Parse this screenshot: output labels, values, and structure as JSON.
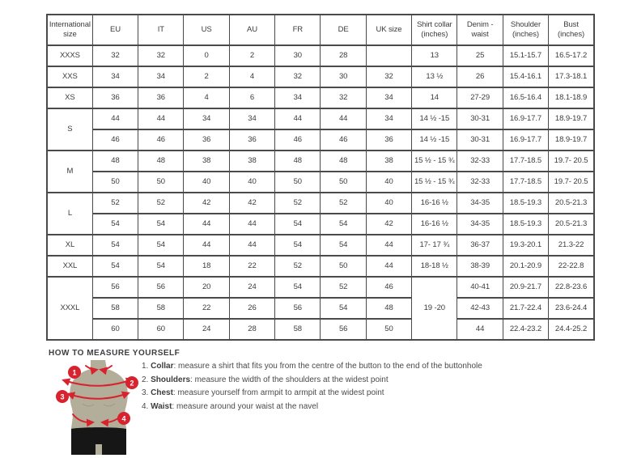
{
  "colors": {
    "accent_red": "#d8232f",
    "body_color": "#b3ae9a",
    "shorts_color": "#161616",
    "border_color": "#4a4a4a",
    "text_color": "#3c3c3c"
  },
  "table": {
    "headers": [
      "International size",
      "EU",
      "IT",
      "US",
      "AU",
      "FR",
      "DE",
      "UK size",
      "Shirt collar (inches)",
      "Denim - waist",
      "Shoulder (inches)",
      "Bust (inches)"
    ],
    "rows": [
      [
        "XXXS",
        "32",
        "32",
        "0",
        "2",
        "30",
        "28",
        "",
        "13",
        "25",
        "15.1-15.7",
        "16.5-17.2"
      ],
      [
        "XXS",
        "34",
        "34",
        "2",
        "4",
        "32",
        "30",
        "32",
        "13 ½",
        "26",
        "15.4-16.1",
        "17.3-18.1"
      ],
      [
        "XS",
        "36",
        "36",
        "4",
        "6",
        "34",
        "32",
        "34",
        "14",
        "27-29",
        "16.5-16.4",
        "18.1-18.9"
      ],
      [
        {
          "text": "S",
          "rowspan": 2
        },
        "44",
        "44",
        "34",
        "34",
        "44",
        "44",
        "34",
        "14 ½ -15",
        "30-31",
        "16.9-17.7",
        "18.9-19.7"
      ],
      [
        "46",
        "46",
        "36",
        "36",
        "46",
        "46",
        "36",
        "14 ½ -15",
        "30-31",
        "16.9-17.7",
        "18.9-19.7"
      ],
      [
        {
          "text": "M",
          "rowspan": 2
        },
        "48",
        "48",
        "38",
        "38",
        "48",
        "48",
        "38",
        "15 ½ - 15 ¾",
        "32-33",
        "17.7-18.5",
        "19.7- 20.5"
      ],
      [
        "50",
        "50",
        "40",
        "40",
        "50",
        "50",
        "40",
        "15 ½ - 15 ¾",
        "32-33",
        "17.7-18.5",
        "19.7- 20.5"
      ],
      [
        {
          "text": "L",
          "rowspan": 2
        },
        "52",
        "52",
        "42",
        "42",
        "52",
        "52",
        "40",
        "16-16 ½",
        "34-35",
        "18.5-19.3",
        "20.5-21.3"
      ],
      [
        "54",
        "54",
        "44",
        "44",
        "54",
        "54",
        "42",
        "16-16 ½",
        "34-35",
        "18.5-19.3",
        "20.5-21.3"
      ],
      [
        "XL",
        "54",
        "54",
        "44",
        "44",
        "54",
        "54",
        "44",
        "17- 17 ¾",
        "36-37",
        "19.3-20.1",
        "21.3-22"
      ],
      [
        "XXL",
        "54",
        "54",
        "18",
        "22",
        "52",
        "50",
        "44",
        "18-18 ½",
        "38-39",
        "20.1-20.9",
        "22-22.8"
      ],
      [
        {
          "text": "XXXL",
          "rowspan": 3
        },
        "56",
        "56",
        "20",
        "24",
        "54",
        "52",
        "46",
        {
          "text": "19 -20",
          "rowspan": 3
        },
        "40-41",
        "20.9-21.7",
        "22.8-23.6"
      ],
      [
        "58",
        "58",
        "22",
        "26",
        "56",
        "54",
        "48",
        "42-43",
        "21.7-22.4",
        "23.6-24.4"
      ],
      [
        "60",
        "60",
        "24",
        "28",
        "58",
        "56",
        "50",
        "44",
        "22.4-23.2",
        "24.4-25.2"
      ]
    ]
  },
  "how_to_measure": {
    "title": "HOW TO MEASURE YOURSELF",
    "steps": [
      {
        "num": "1.",
        "label": "Collar",
        "rest": ": measure a shirt that fits you from the centre of the button to the end of the buttonhole"
      },
      {
        "num": "2.",
        "label": "Shoulders",
        "rest": ": measure the width of the shoulders at the widest point"
      },
      {
        "num": "3.",
        "label": "Chest",
        "rest": ": measure yourself from armpit to armpit at the widest point"
      },
      {
        "num": "4.",
        "label": "Waist",
        "rest": ": measure around your waist at the navel"
      }
    ]
  },
  "figure": {
    "badges": [
      "1",
      "2",
      "3",
      "4"
    ]
  }
}
